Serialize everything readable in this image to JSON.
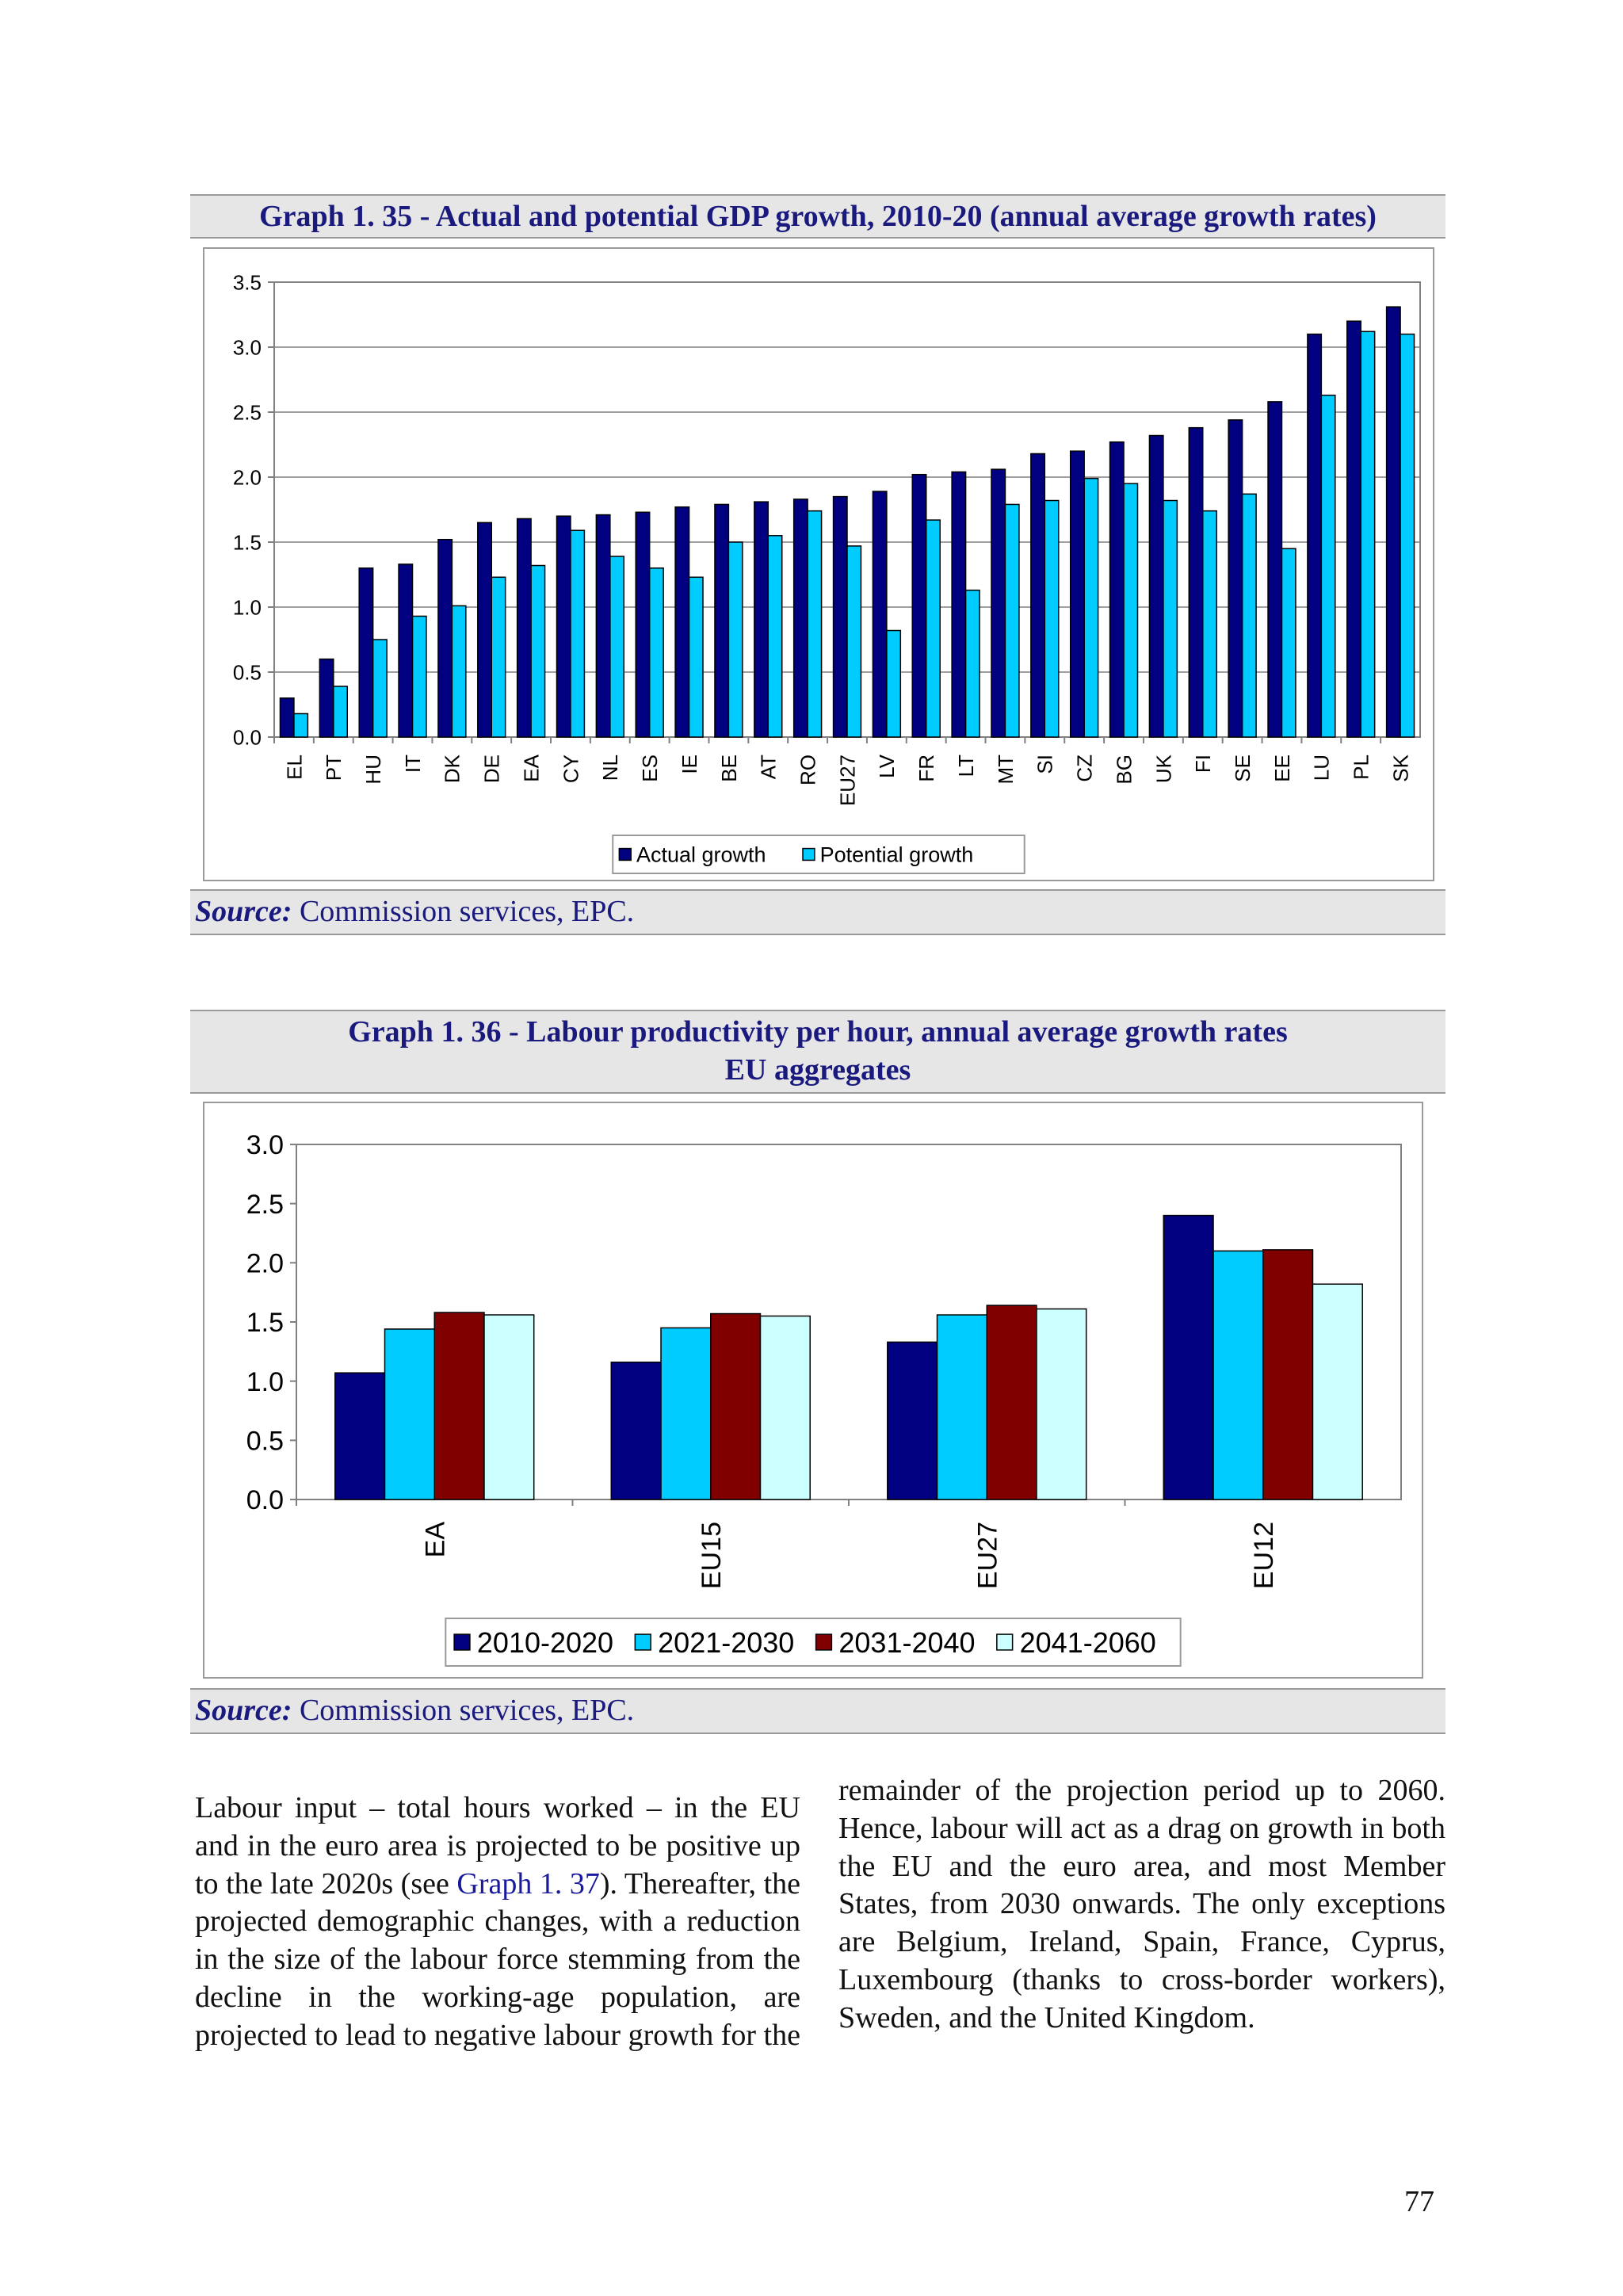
{
  "graph1": {
    "title": "Graph 1. 35 - Actual and potential GDP growth, 2010-20 (annual average growth rates)",
    "source_label": "Source:",
    "source_text": " Commission services, EPC."
  },
  "graph2": {
    "title_line1": "Graph 1. 36 - Labour productivity per hour, annual average growth rates",
    "title_line2": "EU aggregates",
    "source_label": "Source:",
    "source_text": " Commission services, EPC."
  },
  "chart_data": [
    {
      "type": "bar",
      "categories": [
        "EL",
        "PT",
        "HU",
        "IT",
        "DK",
        "DE",
        "EA",
        "CY",
        "NL",
        "ES",
        "IE",
        "BE",
        "AT",
        "RO",
        "EU27",
        "LV",
        "FR",
        "LT",
        "MT",
        "SI",
        "CZ",
        "BG",
        "UK",
        "FI",
        "SE",
        "EE",
        "LU",
        "PL",
        "SK"
      ],
      "series": [
        {
          "name": "Actual growth",
          "values": [
            0.3,
            0.6,
            1.3,
            1.33,
            1.52,
            1.65,
            1.68,
            1.7,
            1.71,
            1.73,
            1.77,
            1.79,
            1.81,
            1.83,
            1.85,
            1.89,
            2.02,
            2.04,
            2.06,
            2.18,
            2.2,
            2.27,
            2.32,
            2.38,
            2.44,
            2.58,
            3.1,
            3.2,
            3.31
          ],
          "color": "#000080"
        },
        {
          "name": "Potential growth",
          "values": [
            0.18,
            0.39,
            0.75,
            0.93,
            1.01,
            1.23,
            1.32,
            1.59,
            1.39,
            1.3,
            1.23,
            1.5,
            1.55,
            1.74,
            1.47,
            0.82,
            1.67,
            1.13,
            1.79,
            1.82,
            1.99,
            1.95,
            1.82,
            1.74,
            1.87,
            1.45,
            2.63,
            3.12,
            3.1
          ],
          "color": "#00ccff"
        }
      ],
      "y_ticks": [
        "0.0",
        "0.5",
        "1.0",
        "1.5",
        "2.0",
        "2.5",
        "3.0",
        "3.5"
      ],
      "ylim": [
        0,
        3.5
      ],
      "grid": true,
      "legend": "bottom"
    },
    {
      "type": "bar",
      "categories": [
        "EA",
        "EU15",
        "EU27",
        "EU12"
      ],
      "series": [
        {
          "name": "2010-2020",
          "values": [
            1.07,
            1.16,
            1.33,
            2.4
          ],
          "color": "#000080"
        },
        {
          "name": "2021-2030",
          "values": [
            1.44,
            1.45,
            1.56,
            2.1
          ],
          "color": "#00ccff"
        },
        {
          "name": "2031-2040",
          "values": [
            1.58,
            1.57,
            1.64,
            2.11
          ],
          "color": "#800000"
        },
        {
          "name": "2041-2060",
          "values": [
            1.56,
            1.55,
            1.61,
            1.82
          ],
          "color": "#ccffff"
        }
      ],
      "y_ticks": [
        "0.0",
        "0.5",
        "1.0",
        "1.5",
        "2.0",
        "2.5",
        "3.0"
      ],
      "ylim": [
        0,
        3.0
      ],
      "grid": false,
      "legend": "bottom"
    }
  ],
  "text": {
    "col1_a": "Labour input – total hours worked – in the EU and in the euro area is projected to be positive up to the late 2020s (see ",
    "col1_link": "Graph 1. 37",
    "col1_b": "). Thereafter, the projected demographic changes, with a reduction in the size of the labour force stemming from the decline in the working-age population, are projected to lead to negative labour growth for the",
    "col2": "remainder of the projection period up to 2060. Hence, labour will act as a drag on growth in both the EU and the euro area, and most Member States, from 2030 onwards. The only exceptions are Belgium, Ireland, Spain, France, Cyprus, Luxembourg (thanks to cross-border workers), Sweden, and the United Kingdom."
  },
  "page_number": "77"
}
